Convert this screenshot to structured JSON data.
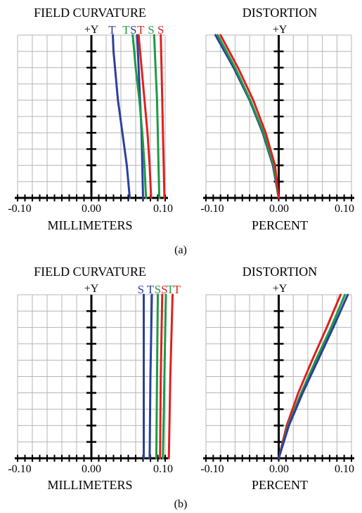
{
  "colors": {
    "blue": "#2b3f9e",
    "green": "#1e9a45",
    "red": "#e02020",
    "grid": "#b4b4b4",
    "axis": "#000000"
  },
  "figures": [
    {
      "caption": "(a)",
      "panels": [
        {
          "title": "FIELD CURVATURE",
          "ylabel": "+Y",
          "xlabel": "MILLIMETERS"
        },
        {
          "title": "DISTORTION",
          "ylabel": "+Y",
          "xlabel": "PERCENT"
        }
      ]
    },
    {
      "caption": "(b)",
      "panels": [
        {
          "title": "FIELD CURVATURE",
          "ylabel": "+Y",
          "xlabel": "MILLIMETERS"
        },
        {
          "title": "DISTORTION",
          "ylabel": "+Y",
          "xlabel": "PERCENT"
        }
      ]
    }
  ],
  "chart_data": [
    {
      "type": "line",
      "figure": "(a)",
      "title": "FIELD CURVATURE",
      "xlabel": "MILLIMETERS",
      "ylabel": "+Y",
      "xlim": [
        -0.1,
        0.1
      ],
      "ylim": [
        0,
        1
      ],
      "x_ticks": [
        "-0.10",
        "0.00",
        "0.10"
      ],
      "grid": true,
      "series": [
        {
          "name": "T",
          "color": "blue",
          "points": [
            [
              0.052,
              0
            ],
            [
              0.05,
              0.1
            ],
            [
              0.048,
              0.2
            ],
            [
              0.045,
              0.3
            ],
            [
              0.042,
              0.4
            ],
            [
              0.039,
              0.5
            ],
            [
              0.036,
              0.6
            ],
            [
              0.034,
              0.7
            ],
            [
              0.032,
              0.8
            ],
            [
              0.03,
              0.9
            ],
            [
              0.029,
              1.0
            ]
          ]
        },
        {
          "name": "S",
          "color": "blue",
          "points": [
            [
              0.07,
              0
            ],
            [
              0.069,
              0.2
            ],
            [
              0.068,
              0.4
            ],
            [
              0.066,
              0.6
            ],
            [
              0.064,
              0.8
            ],
            [
              0.062,
              1.0
            ]
          ]
        },
        {
          "name": "T",
          "color": "green",
          "points": [
            [
              0.074,
              0
            ],
            [
              0.072,
              0.2
            ],
            [
              0.069,
              0.4
            ],
            [
              0.065,
              0.6
            ],
            [
              0.06,
              0.8
            ],
            [
              0.056,
              1.0
            ]
          ]
        },
        {
          "name": "S",
          "color": "green",
          "points": [
            [
              0.092,
              0
            ],
            [
              0.091,
              0.2
            ],
            [
              0.09,
              0.4
            ],
            [
              0.089,
              0.6
            ],
            [
              0.087,
              0.8
            ],
            [
              0.085,
              1.0
            ]
          ]
        },
        {
          "name": "T",
          "color": "red",
          "points": [
            [
              0.081,
              0
            ],
            [
              0.079,
              0.2
            ],
            [
              0.076,
              0.4
            ],
            [
              0.072,
              0.6
            ],
            [
              0.068,
              0.8
            ],
            [
              0.064,
              1.0
            ]
          ]
        },
        {
          "name": "S",
          "color": "red",
          "points": [
            [
              0.099,
              0
            ],
            [
              0.098,
              0.2
            ],
            [
              0.097,
              0.4
            ],
            [
              0.096,
              0.6
            ],
            [
              0.095,
              0.8
            ],
            [
              0.094,
              1.0
            ]
          ]
        }
      ],
      "curve_labels": [
        {
          "text": "T",
          "color": "blue",
          "x": 0.028
        },
        {
          "text": "T",
          "color": "green",
          "x": 0.047
        },
        {
          "text": "S",
          "color": "blue",
          "x": 0.057
        },
        {
          "text": "T",
          "color": "red",
          "x": 0.067
        },
        {
          "text": "S",
          "color": "green",
          "x": 0.081
        },
        {
          "text": "S",
          "color": "red",
          "x": 0.094
        }
      ]
    },
    {
      "type": "line",
      "figure": "(a)",
      "title": "DISTORTION",
      "xlabel": "PERCENT",
      "ylabel": "+Y",
      "xlim": [
        -0.1,
        0.1
      ],
      "ylim": [
        0,
        1
      ],
      "x_ticks": [
        "-0.10",
        "0.00",
        "0.10"
      ],
      "grid": true,
      "series": [
        {
          "color": "blue",
          "points": [
            [
              0,
              0
            ],
            [
              -0.008,
              0.2
            ],
            [
              -0.022,
              0.4
            ],
            [
              -0.04,
              0.6
            ],
            [
              -0.062,
              0.8
            ],
            [
              -0.087,
              1.0
            ]
          ]
        },
        {
          "color": "green",
          "points": [
            [
              0,
              0
            ],
            [
              -0.007,
              0.2
            ],
            [
              -0.021,
              0.4
            ],
            [
              -0.039,
              0.6
            ],
            [
              -0.06,
              0.8
            ],
            [
              -0.084,
              1.0
            ]
          ]
        },
        {
          "color": "red",
          "points": [
            [
              0,
              0
            ],
            [
              -0.005,
              0.2
            ],
            [
              -0.018,
              0.4
            ],
            [
              -0.035,
              0.6
            ],
            [
              -0.056,
              0.8
            ],
            [
              -0.08,
              1.0
            ]
          ]
        }
      ]
    },
    {
      "type": "line",
      "figure": "(b)",
      "title": "FIELD CURVATURE",
      "xlabel": "MILLIMETERS",
      "ylabel": "+Y",
      "xlim": [
        -0.1,
        0.1
      ],
      "ylim": [
        0,
        1
      ],
      "x_ticks": [
        "-0.10",
        "0.00",
        "0.10"
      ],
      "grid": true,
      "series": [
        {
          "name": "S",
          "color": "blue",
          "points": [
            [
              0.071,
              0
            ],
            [
              0.071,
              0.5
            ],
            [
              0.071,
              1.0
            ]
          ]
        },
        {
          "name": "T",
          "color": "blue",
          "points": [
            [
              0.079,
              0
            ],
            [
              0.08,
              0.5
            ],
            [
              0.082,
              1.0
            ]
          ]
        },
        {
          "name": "S",
          "color": "green",
          "points": [
            [
              0.088,
              0
            ],
            [
              0.089,
              0.5
            ],
            [
              0.09,
              1.0
            ]
          ]
        },
        {
          "name": "T",
          "color": "green",
          "points": [
            [
              0.097,
              0
            ],
            [
              0.099,
              0.5
            ],
            [
              0.101,
              1.0
            ]
          ]
        },
        {
          "name": "S",
          "color": "red",
          "points": [
            [
              0.093,
              0
            ],
            [
              0.094,
              0.5
            ],
            [
              0.096,
              1.0
            ]
          ]
        },
        {
          "name": "T",
          "color": "red",
          "points": [
            [
              0.105,
              0
            ],
            [
              0.107,
              0.5
            ],
            [
              0.11,
              1.0
            ]
          ]
        }
      ],
      "curve_labels": [
        {
          "text": "S",
          "color": "blue",
          "x": 0.067
        },
        {
          "text": "T",
          "color": "blue",
          "x": 0.08
        },
        {
          "text": "S",
          "color": "green",
          "x": 0.09
        },
        {
          "text": "S",
          "color": "red",
          "x": 0.099
        },
        {
          "text": "T",
          "color": "green",
          "x": 0.107
        },
        {
          "text": "T",
          "color": "red",
          "x": 0.116
        }
      ]
    },
    {
      "type": "line",
      "figure": "(b)",
      "title": "DISTORTION",
      "xlabel": "PERCENT",
      "ylabel": "+Y",
      "xlim": [
        -0.1,
        0.1
      ],
      "ylim": [
        0,
        1
      ],
      "x_ticks": [
        "-0.10",
        "0.00",
        "0.10"
      ],
      "grid": true,
      "series": [
        {
          "color": "red",
          "points": [
            [
              0,
              0
            ],
            [
              0.011,
              0.2
            ],
            [
              0.027,
              0.4
            ],
            [
              0.046,
              0.6
            ],
            [
              0.066,
              0.8
            ],
            [
              0.085,
              1.0
            ]
          ]
        },
        {
          "color": "green",
          "points": [
            [
              0,
              0
            ],
            [
              0.013,
              0.2
            ],
            [
              0.031,
              0.4
            ],
            [
              0.051,
              0.6
            ],
            [
              0.072,
              0.8
            ],
            [
              0.091,
              1.0
            ]
          ]
        },
        {
          "color": "blue",
          "points": [
            [
              0,
              0
            ],
            [
              0.014,
              0.2
            ],
            [
              0.033,
              0.4
            ],
            [
              0.054,
              0.6
            ],
            [
              0.075,
              0.8
            ],
            [
              0.095,
              1.0
            ]
          ]
        }
      ]
    }
  ]
}
